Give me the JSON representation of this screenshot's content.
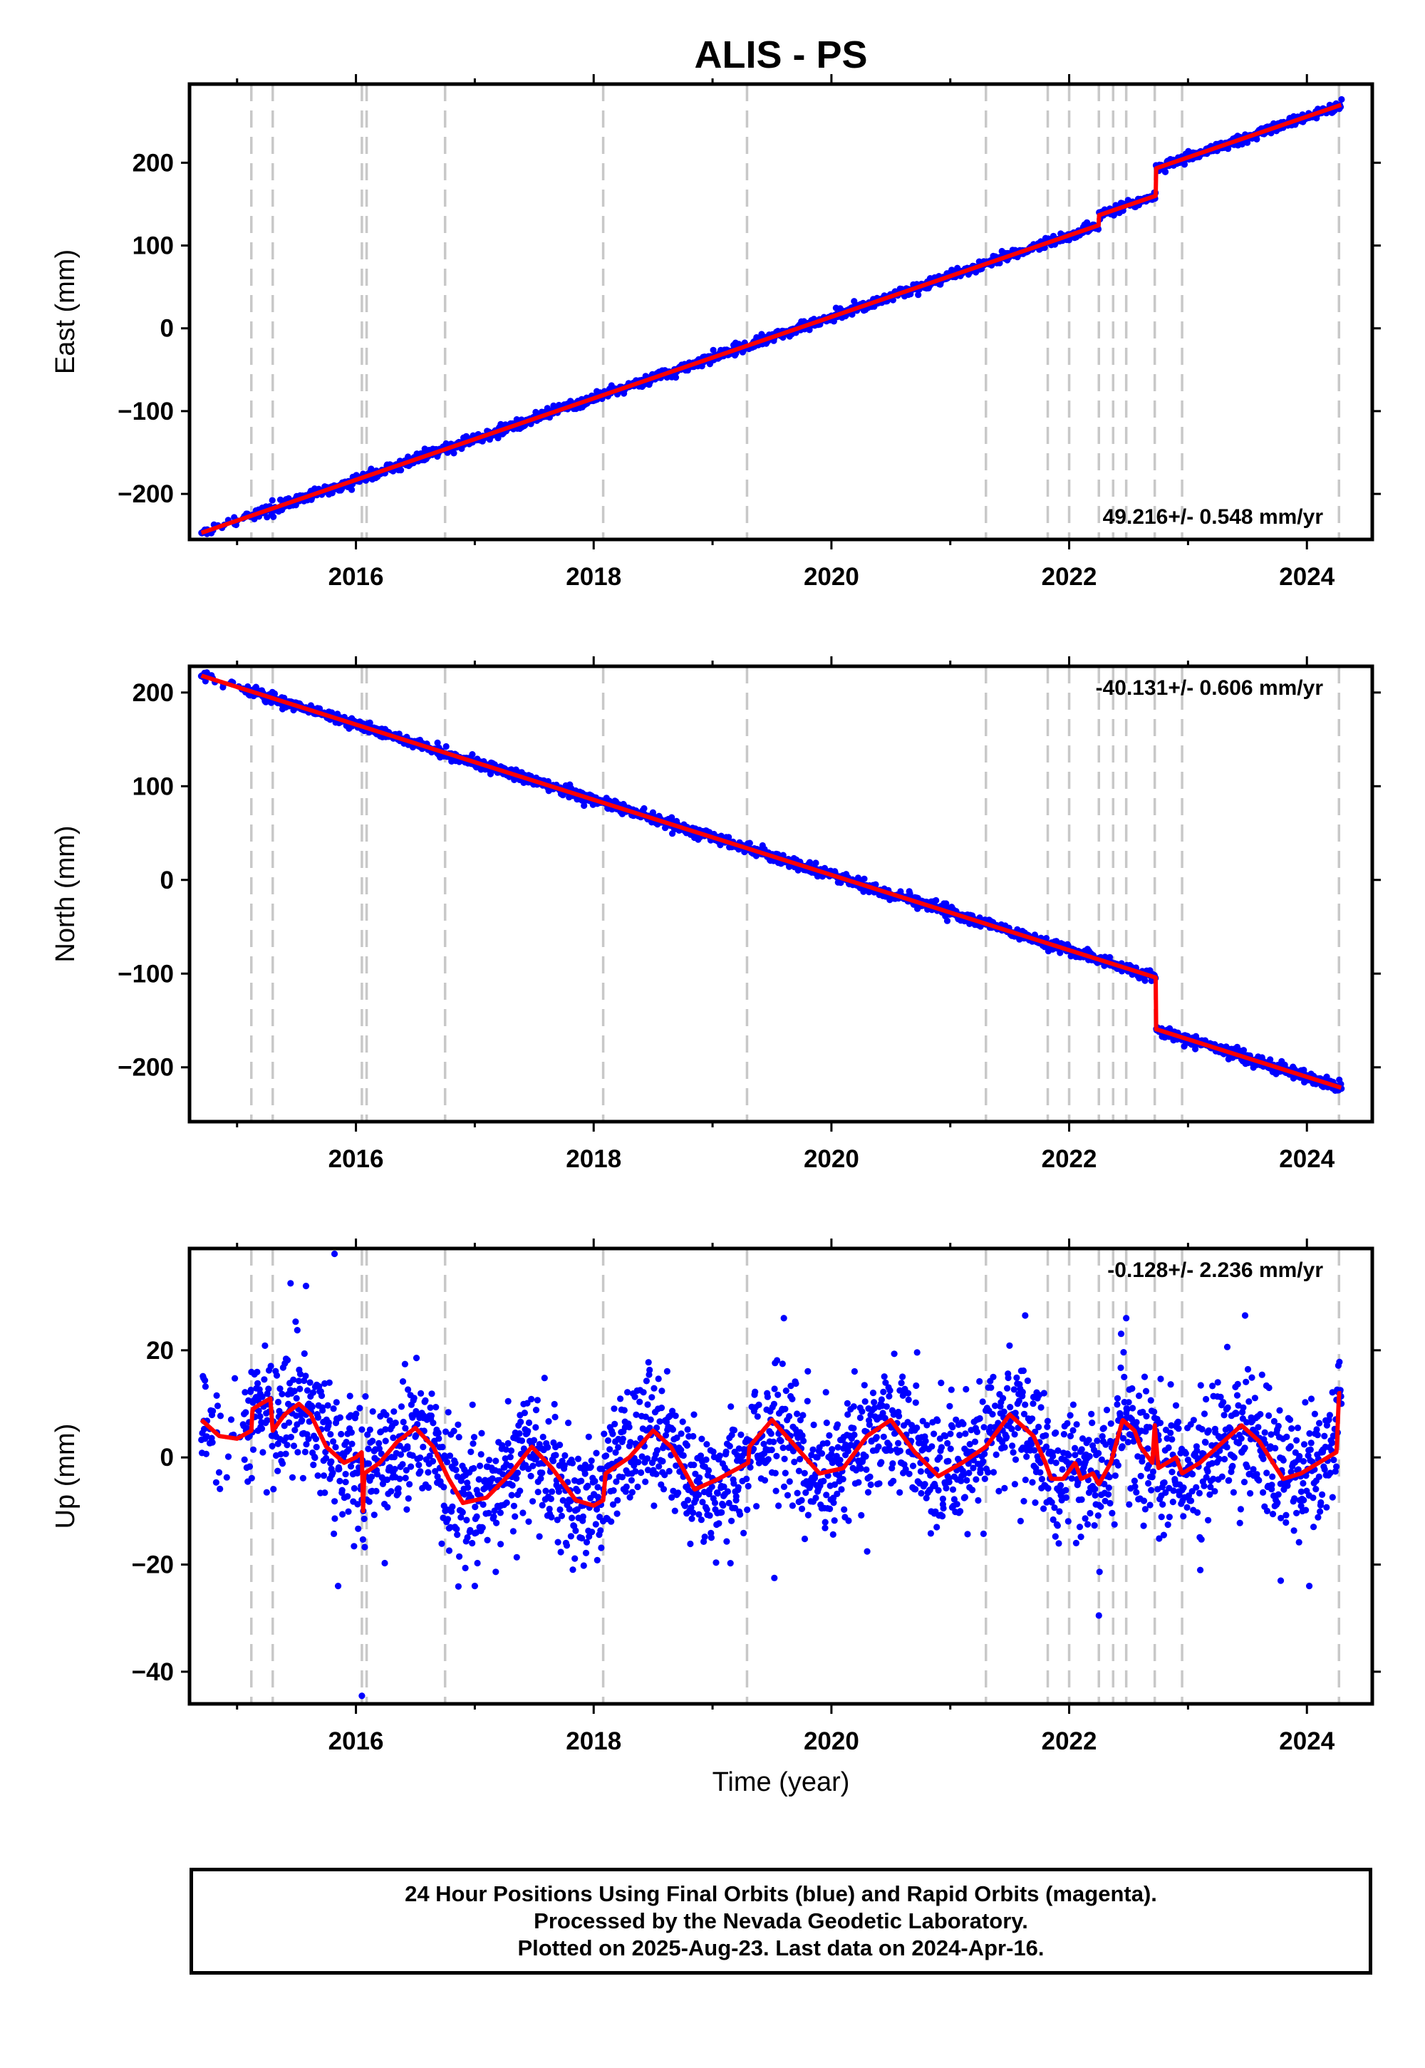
{
  "title": "ALIS - PS",
  "chart_data": [
    {
      "type": "scatter",
      "ylabel": "East (mm)",
      "xlabel": "",
      "xlim": [
        2014.6,
        2024.55
      ],
      "ylim": [
        -255,
        295
      ],
      "yticks": [
        -200,
        -100,
        0,
        100,
        200
      ],
      "ytick_labels": [
        "−200",
        "−100",
        "0",
        "100",
        "200"
      ],
      "rate_label": "49.216+/- 0.548 mm/yr",
      "rate_position": "bottom-right",
      "model": {
        "rate": 49.216,
        "anchor": [
          2014.7,
          -247
        ],
        "steps": [
          {
            "t": 2022.25,
            "dy": 12
          },
          {
            "t": 2022.73,
            "dy": 33
          }
        ]
      },
      "noise": 3,
      "outliers": []
    },
    {
      "type": "scatter",
      "ylabel": "North (mm)",
      "xlabel": "",
      "xlim": [
        2014.6,
        2024.55
      ],
      "ylim": [
        -258,
        228
      ],
      "yticks": [
        -200,
        -100,
        0,
        100,
        200
      ],
      "ytick_labels": [
        "−200",
        "−100",
        "0",
        "100",
        "200"
      ],
      "rate_label": "-40.131+/- 0.606 mm/yr",
      "rate_position": "top-right",
      "model": {
        "rate": -40.131,
        "anchor": [
          2014.7,
          218
        ],
        "steps": [
          {
            "t": 2022.73,
            "dy": -55
          }
        ]
      },
      "noise": 3,
      "outliers": []
    },
    {
      "type": "scatter",
      "ylabel": "Up (mm)",
      "xlabel": "Time (year)",
      "xlim": [
        2014.6,
        2024.55
      ],
      "ylim": [
        -46,
        39
      ],
      "yticks": [
        -40,
        -20,
        0,
        20
      ],
      "ytick_labels": [
        "−40",
        "−20",
        "0",
        "20"
      ],
      "rate_label": "-0.128+/- 2.236 mm/yr",
      "rate_position": "top-right",
      "seasonal_curve": [
        [
          2014.7,
          7
        ],
        [
          2014.85,
          4
        ],
        [
          2015.0,
          3.5
        ],
        [
          2015.12,
          5
        ],
        [
          2015.13,
          9
        ],
        [
          2015.2,
          10
        ],
        [
          2015.28,
          11
        ],
        [
          2015.3,
          5
        ],
        [
          2015.4,
          8
        ],
        [
          2015.52,
          10
        ],
        [
          2015.62,
          8
        ],
        [
          2015.75,
          2
        ],
        [
          2015.9,
          -1
        ],
        [
          2016.0,
          0
        ],
        [
          2016.05,
          1
        ],
        [
          2016.06,
          -10
        ],
        [
          2016.07,
          -3
        ],
        [
          2016.2,
          -1
        ],
        [
          2016.35,
          3
        ],
        [
          2016.5,
          5.5
        ],
        [
          2016.65,
          2
        ],
        [
          2016.78,
          -4
        ],
        [
          2016.9,
          -8.5
        ],
        [
          2017.1,
          -7.5
        ],
        [
          2017.3,
          -3
        ],
        [
          2017.48,
          2
        ],
        [
          2017.65,
          -2
        ],
        [
          2017.85,
          -8
        ],
        [
          2018.0,
          -9
        ],
        [
          2018.08,
          -8
        ],
        [
          2018.1,
          -3
        ],
        [
          2018.3,
          0
        ],
        [
          2018.5,
          5
        ],
        [
          2018.65,
          2
        ],
        [
          2018.85,
          -6
        ],
        [
          2019.05,
          -4
        ],
        [
          2019.3,
          -1
        ],
        [
          2019.31,
          2
        ],
        [
          2019.5,
          7
        ],
        [
          2019.7,
          2
        ],
        [
          2019.9,
          -3
        ],
        [
          2020.1,
          -2
        ],
        [
          2020.3,
          4
        ],
        [
          2020.5,
          7
        ],
        [
          2020.7,
          1
        ],
        [
          2020.9,
          -3.5
        ],
        [
          2021.1,
          -1
        ],
        [
          2021.3,
          2
        ],
        [
          2021.5,
          8
        ],
        [
          2021.7,
          4
        ],
        [
          2021.8,
          -1
        ],
        [
          2021.85,
          -4
        ],
        [
          2021.95,
          -4
        ],
        [
          2022.05,
          -1
        ],
        [
          2022.1,
          -4
        ],
        [
          2022.2,
          -3
        ],
        [
          2022.25,
          -5
        ],
        [
          2022.35,
          -1
        ],
        [
          2022.45,
          7
        ],
        [
          2022.55,
          5
        ],
        [
          2022.6,
          2
        ],
        [
          2022.7,
          -1
        ],
        [
          2022.72,
          6
        ],
        [
          2022.75,
          -2
        ],
        [
          2022.9,
          0
        ],
        [
          2022.95,
          -3
        ],
        [
          2023.1,
          -1
        ],
        [
          2023.3,
          3
        ],
        [
          2023.45,
          6
        ],
        [
          2023.6,
          3
        ],
        [
          2023.8,
          -4
        ],
        [
          2023.95,
          -3
        ],
        [
          2024.1,
          -1
        ],
        [
          2024.25,
          1
        ],
        [
          2024.27,
          12
        ]
      ],
      "noise": 6,
      "outliers": [
        [
          2015.82,
          38
        ],
        [
          2016.05,
          -44.5
        ],
        [
          2022.25,
          -29.5
        ],
        [
          2019.52,
          -22.5
        ],
        [
          2017.0,
          -24
        ],
        [
          2015.85,
          -24
        ],
        [
          2023.78,
          -23
        ],
        [
          2024.02,
          -24
        ],
        [
          2019.6,
          26
        ],
        [
          2021.63,
          26.5
        ],
        [
          2022.48,
          26
        ],
        [
          2023.48,
          26.5
        ],
        [
          2015.45,
          32.5
        ],
        [
          2015.58,
          32
        ]
      ]
    }
  ],
  "vlines": [
    2015.12,
    2015.3,
    2016.05,
    2016.09,
    2016.75,
    2018.08,
    2019.29,
    2021.3,
    2021.82,
    2022.0,
    2022.25,
    2022.37,
    2022.48,
    2022.72,
    2022.95,
    2024.27
  ],
  "x_ticks": [
    2016,
    2018,
    2020,
    2022,
    2024
  ],
  "x_tick_labels": [
    "2016",
    "2018",
    "2020",
    "2022",
    "2024"
  ],
  "x_minor": [
    2015,
    2017,
    2019,
    2021,
    2023
  ],
  "colors": {
    "data": "#0000ff",
    "model": "#ff0000",
    "vline": "#c8c8c8",
    "frame": "#000000"
  },
  "caption": {
    "line1": "24 Hour Positions Using Final Orbits (blue) and Rapid Orbits (magenta).",
    "line2": "Processed by the Nevada Geodetic Laboratory.",
    "line3": "Plotted on 2025-Aug-23. Last data on 2024-Apr-16."
  }
}
